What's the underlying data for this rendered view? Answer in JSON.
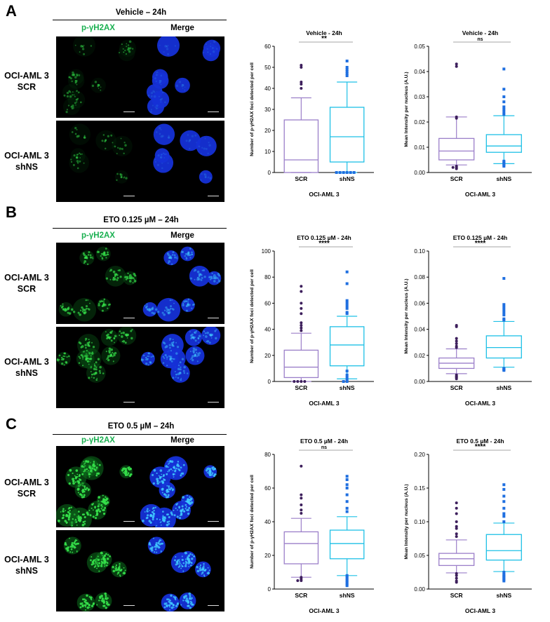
{
  "figure": {
    "panels": [
      {
        "letter": "A",
        "header": "Vehicle – 24h",
        "col_labels": [
          "p-γH2AX",
          "Merge"
        ],
        "row_labels": [
          [
            "OCI-AML 3",
            "SCR"
          ],
          [
            "OCI-AML 3",
            "shNS"
          ]
        ],
        "intensity": "low"
      },
      {
        "letter": "B",
        "header": "ETO 0.125 µM – 24h",
        "col_labels": [
          "p-γH2AX",
          "Merge"
        ],
        "row_labels": [
          [
            "OCI-AML 3",
            "SCR"
          ],
          [
            "OCI-AML 3",
            "shNS"
          ]
        ],
        "intensity": "medium"
      },
      {
        "letter": "C",
        "header": "ETO 0.5 µM – 24h",
        "col_labels": [
          "p-γH2AX",
          "Merge"
        ],
        "row_labels": [
          [
            "OCI-AML 3",
            "SCR"
          ],
          [
            "OCI-AML 3",
            "shNS"
          ]
        ],
        "intensity": "high"
      }
    ],
    "colors": {
      "scr": "#9b7fc9",
      "scr_points": "#3d1f5c",
      "shns": "#1ec0e6",
      "shns_points": "#1f6fe0",
      "green_label": "#19b050"
    }
  },
  "chart_data": [
    {
      "type": "boxplot",
      "title": "Vehicle - 24h",
      "significance": "**",
      "xlabel": "OCI-AML 3",
      "ylabel": "Number of p-γH2AX foci detected per cell",
      "ylim": [
        0,
        60
      ],
      "yticks": [
        "0",
        "10",
        "20",
        "30",
        "40",
        "50",
        "60"
      ],
      "categories": [
        "SCR",
        "shNS"
      ],
      "boxes": [
        {
          "min": 0,
          "q1": 0,
          "median": 6,
          "q3": 25,
          "max": 35.5,
          "outliers": [
            51,
            50,
            43,
            42,
            40
          ]
        },
        {
          "min": 0,
          "q1": 5,
          "median": 17,
          "q3": 31,
          "max": 43,
          "outliers": [
            53,
            50,
            49,
            48,
            47,
            46,
            0,
            0,
            0,
            0,
            0,
            0
          ]
        }
      ]
    },
    {
      "type": "boxplot",
      "title": "Vehicle - 24h",
      "significance": "ns",
      "xlabel": "OCI-AML 3",
      "ylabel": "Mean Intensity per nucleus (A.U.)",
      "ylim": [
        0,
        0.05
      ],
      "yticks": [
        "0.00",
        "0.01",
        "0.02",
        "0.03",
        "0.04",
        "0.05"
      ],
      "categories": [
        "SCR",
        "shNS"
      ],
      "boxes": [
        {
          "min": 0.003,
          "q1": 0.005,
          "median": 0.0085,
          "q3": 0.0135,
          "max": 0.022,
          "outliers": [
            0.043,
            0.042,
            0.022,
            0.0215,
            0.0025,
            0.002,
            0.0015,
            0.002
          ]
        },
        {
          "min": 0.0035,
          "q1": 0.008,
          "median": 0.0105,
          "q3": 0.015,
          "max": 0.0225,
          "outliers": [
            0.041,
            0.033,
            0.03,
            0.028,
            0.026,
            0.025,
            0.024,
            0.023,
            0.0045,
            0.004,
            0.0035,
            0.003,
            0.0025
          ]
        }
      ]
    },
    {
      "type": "boxplot",
      "title": "ETO 0.125 µM - 24h",
      "significance": "****",
      "xlabel": "OCI-AML 3",
      "ylabel": "Number of p-γH2AX foci detected per cell",
      "ylim": [
        0,
        100
      ],
      "yticks": [
        "0",
        "20",
        "40",
        "60",
        "80",
        "100"
      ],
      "categories": [
        "SCR",
        "shNS"
      ],
      "boxes": [
        {
          "min": 0,
          "q1": 3,
          "median": 11,
          "q3": 24,
          "max": 37,
          "outliers": [
            73,
            69,
            60,
            56,
            52,
            45,
            43,
            41,
            39,
            0,
            0,
            0,
            0
          ]
        },
        {
          "min": 2,
          "q1": 12,
          "median": 28,
          "q3": 42,
          "max": 50,
          "outliers": [
            84,
            75,
            62,
            60,
            58,
            56,
            53,
            52,
            8,
            5,
            3,
            1,
            0,
            0
          ]
        }
      ]
    },
    {
      "type": "boxplot",
      "title": "ETO 0.125 µM - 24h",
      "significance": "****",
      "xlabel": "OCI-AML 3",
      "ylabel": "Mean Intensity per nucleus (A.U.)",
      "ylim": [
        0,
        0.1
      ],
      "yticks": [
        "0.00",
        "0.02",
        "0.04",
        "0.06",
        "0.08",
        "0.10"
      ],
      "categories": [
        "SCR",
        "shNS"
      ],
      "boxes": [
        {
          "min": 0.006,
          "q1": 0.01,
          "median": 0.014,
          "q3": 0.018,
          "max": 0.025,
          "outliers": [
            0.043,
            0.042,
            0.033,
            0.031,
            0.029,
            0.027,
            0.026,
            0.005,
            0.004,
            0.003,
            0.0035,
            0.002
          ]
        },
        {
          "min": 0.011,
          "q1": 0.018,
          "median": 0.026,
          "q3": 0.035,
          "max": 0.046,
          "outliers": [
            0.079,
            0.059,
            0.057,
            0.055,
            0.053,
            0.051,
            0.048,
            0.047,
            0.01,
            0.009,
            0.0095,
            0.0085
          ]
        }
      ]
    },
    {
      "type": "boxplot",
      "title": "ETO 0.5 µM - 24h",
      "significance": "ns",
      "xlabel": "OCI-AML 3",
      "ylabel": "Number of p-γH2AX foci detected per cell",
      "ylim": [
        0,
        80
      ],
      "yticks": [
        "0",
        "20",
        "40",
        "60",
        "80"
      ],
      "categories": [
        "SCR",
        "shNS"
      ],
      "boxes": [
        {
          "min": 7,
          "q1": 15,
          "median": 27,
          "q3": 34,
          "max": 42,
          "outliers": [
            73,
            56,
            54,
            50,
            47,
            45,
            7,
            6,
            5,
            5
          ]
        },
        {
          "min": 8,
          "q1": 18,
          "median": 27,
          "q3": 35,
          "max": 43,
          "outliers": [
            67,
            65,
            62,
            60,
            56,
            52,
            48,
            46,
            8,
            7,
            6,
            5,
            4,
            3,
            2
          ]
        }
      ]
    },
    {
      "type": "boxplot",
      "title": "ETO 0.5 µM - 24h",
      "significance": "****",
      "xlabel": "OCI-AML 3",
      "ylabel": "Mean Intensity per nucleus (A.U.)",
      "ylim": [
        0,
        0.2
      ],
      "yticks": [
        "0.00",
        "0.05",
        "0.10",
        "0.15",
        "0.20"
      ],
      "categories": [
        "SCR",
        "shNS"
      ],
      "boxes": [
        {
          "min": 0.024,
          "q1": 0.035,
          "median": 0.045,
          "q3": 0.053,
          "max": 0.073,
          "outliers": [
            0.128,
            0.12,
            0.112,
            0.1,
            0.093,
            0.09,
            0.082,
            0.078,
            0.023,
            0.02,
            0.016,
            0.012,
            0.01
          ]
        },
        {
          "min": 0.026,
          "q1": 0.043,
          "median": 0.057,
          "q3": 0.081,
          "max": 0.098,
          "outliers": [
            0.155,
            0.148,
            0.138,
            0.13,
            0.12,
            0.112,
            0.108,
            0.1,
            0.025,
            0.022,
            0.02,
            0.018,
            0.016,
            0.014,
            0.012
          ]
        }
      ]
    }
  ]
}
